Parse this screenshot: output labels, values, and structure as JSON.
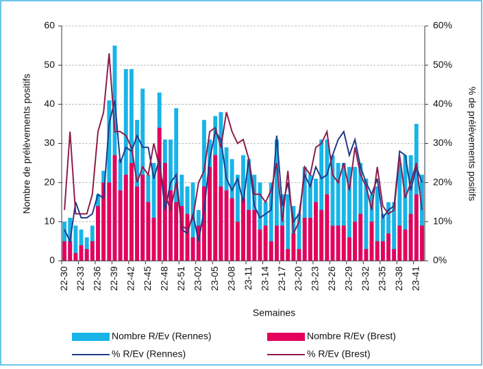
{
  "chart_data": {
    "type": "bar_line",
    "x_label": "Semaines",
    "y_label": "Nombre de prélèvements positifs",
    "y2_label": "% de prélèvements positifs",
    "categories": [
      "22-30",
      null,
      null,
      "22-33",
      null,
      null,
      "22-36",
      null,
      null,
      "22-39",
      null,
      null,
      "22-42",
      null,
      null,
      "22-45",
      null,
      null,
      "22-48",
      null,
      null,
      "22-51",
      null,
      null,
      "23-02",
      null,
      null,
      "23-05",
      null,
      null,
      "23-08",
      null,
      null,
      "23-11",
      null,
      null,
      "23-14",
      null,
      null,
      "23-17",
      null,
      null,
      "23-20",
      null,
      null,
      "23-23",
      null,
      null,
      "23-26",
      null,
      null,
      "23-29",
      null,
      null,
      "23-32",
      null,
      null,
      "23-35",
      null,
      null,
      "23-38",
      null,
      null,
      "23-41",
      null
    ],
    "ylim": [
      0,
      60
    ],
    "yticks": [
      0,
      10,
      20,
      30,
      40,
      50,
      60
    ],
    "y2lim": [
      0,
      60
    ],
    "y2ticks": [
      {
        "value": 0,
        "label": "0%"
      },
      {
        "value": 10,
        "label": "10%"
      },
      {
        "value": 20,
        "label": "20%"
      },
      {
        "value": 30,
        "label": "30%"
      },
      {
        "value": 40,
        "label": "40%"
      },
      {
        "value": 50,
        "label": "50%"
      },
      {
        "value": 60,
        "label": "60%"
      }
    ],
    "grid": true,
    "series": [
      {
        "name": "Nombre R/Ev (Rennes)",
        "kind": "bar",
        "color": "#18b4e8",
        "values": [
          10,
          11,
          9,
          8,
          6,
          9,
          17,
          23,
          41,
          55,
          26,
          49,
          49,
          36,
          44,
          22,
          25,
          43,
          31,
          31,
          39,
          22,
          19,
          20,
          13,
          36,
          31,
          37,
          38,
          29,
          26,
          22,
          27,
          26,
          22,
          20,
          15,
          20,
          31,
          17,
          17,
          14,
          12,
          24,
          22,
          21,
          31,
          31,
          27,
          25,
          25,
          24,
          24,
          25,
          21,
          17,
          19,
          12,
          15,
          15,
          25,
          27,
          27,
          35,
          22
        ]
      },
      {
        "name": "Nombre R/Ev (Brest)",
        "kind": "bar",
        "color": "#e5005b",
        "values": [
          5,
          5,
          2,
          4,
          3,
          5,
          14,
          20,
          20,
          27,
          18,
          22,
          25,
          19,
          22,
          15,
          11,
          34,
          25,
          18,
          15,
          14,
          12,
          6,
          9,
          19,
          24,
          27,
          19,
          18,
          16,
          10,
          16,
          13,
          13,
          8,
          9,
          5,
          9,
          9,
          3,
          7,
          3,
          11,
          11,
          15,
          13,
          17,
          9,
          9,
          9,
          6,
          10,
          12,
          3,
          10,
          5,
          5,
          7,
          3,
          9,
          8,
          12,
          17,
          9
        ]
      },
      {
        "name": "% R/Ev (Rennes)",
        "kind": "line",
        "axis": "y2",
        "color": "#1f3a8a",
        "values": [
          8,
          5,
          15,
          11,
          11,
          12,
          17,
          16,
          35,
          41,
          25,
          29,
          28,
          32,
          29,
          29,
          21,
          26,
          13,
          20,
          22,
          8,
          7,
          12,
          5,
          13,
          26,
          33,
          31,
          21,
          18,
          21,
          15,
          26,
          14,
          11,
          12,
          13,
          32,
          14,
          20,
          10,
          12,
          22,
          19,
          24,
          21,
          22,
          27,
          31,
          33,
          27,
          31,
          24,
          20,
          17,
          21,
          11,
          13,
          14,
          28,
          27,
          18,
          24,
          20
        ]
      },
      {
        "name": "% R/Ev (Brest)",
        "kind": "line",
        "axis": "y2",
        "color": "#8e1b4c",
        "values": [
          13,
          33,
          12,
          12,
          12,
          17,
          33,
          38,
          53,
          33,
          33,
          32,
          29,
          20,
          24,
          22,
          30,
          24,
          17,
          13,
          20,
          9,
          8,
          11,
          20,
          23,
          33,
          34,
          29,
          38,
          33,
          30,
          31,
          26,
          17,
          17,
          15,
          18,
          25,
          10,
          23,
          7,
          10,
          24,
          22,
          29,
          30,
          33,
          22,
          20,
          25,
          18,
          29,
          22,
          19,
          13,
          24,
          14,
          12,
          13,
          27,
          16,
          20,
          25,
          13
        ]
      }
    ]
  }
}
